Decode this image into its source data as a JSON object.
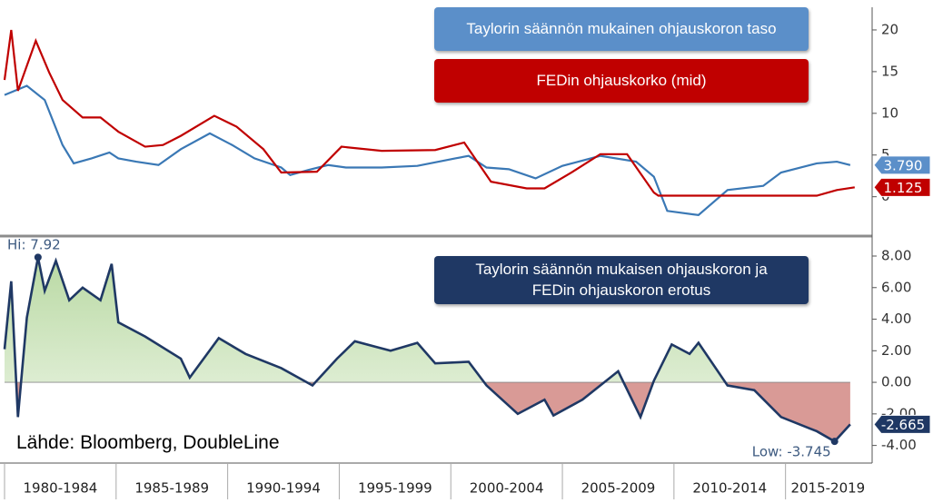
{
  "chart_data": [
    {
      "type": "line",
      "xlim": [
        1980,
        2018.8
      ],
      "ylim": [
        -4.5,
        22.5
      ],
      "yticks": [
        0,
        5,
        10,
        15,
        20
      ],
      "series": [
        {
          "name": "Taylorin säännön mukainen ohjauskoron taso",
          "color": "#3a78b5",
          "box_color": "#5b8fc9",
          "last_label": "3.790",
          "x": [
            1980.0,
            1981.0,
            1981.8,
            1982.6,
            1983.1,
            1983.9,
            1984.7,
            1985.1,
            1985.9,
            1986.9,
            1987.9,
            1989.2,
            1990.2,
            1991.2,
            1992.4,
            1992.8,
            1993.6,
            1994.5,
            1995.3,
            1996.9,
            1998.5,
            2000.2,
            2000.8,
            2001.6,
            2002.6,
            2003.8,
            2005.0,
            2006.7,
            2008.3,
            2009.1,
            2009.7,
            2011.1,
            2012.4,
            2014.0,
            2014.8,
            2016.4,
            2017.3,
            2017.9
          ],
          "values": [
            12.2,
            13.3,
            11.6,
            6.2,
            4.0,
            4.6,
            5.3,
            4.6,
            4.2,
            3.8,
            5.7,
            7.6,
            6.2,
            4.6,
            3.5,
            2.6,
            3.2,
            3.8,
            3.5,
            3.5,
            3.7,
            4.6,
            4.9,
            3.5,
            3.3,
            2.2,
            3.7,
            4.9,
            4.2,
            2.4,
            -1.7,
            -2.2,
            0.8,
            1.3,
            2.9,
            4.0,
            4.2,
            3.79
          ]
        },
        {
          "name": "FEDin ohjauskorko (mid)",
          "color": "#c00000",
          "box_color": "#c00000",
          "last_label": "1.125",
          "x": [
            1980.0,
            1980.3,
            1980.6,
            1981.4,
            1982.0,
            1982.6,
            1983.5,
            1984.3,
            1985.1,
            1986.3,
            1987.1,
            1987.9,
            1989.4,
            1990.4,
            1991.6,
            1992.4,
            1994.0,
            1995.1,
            1996.9,
            1999.3,
            2000.6,
            2001.8,
            2003.4,
            2004.2,
            2005.4,
            2006.7,
            2007.9,
            2009.1,
            2009.3,
            2016.4,
            2017.3,
            2018.1
          ],
          "values": [
            14,
            20,
            12.7,
            18.7,
            14.9,
            11.6,
            9.5,
            9.5,
            7.8,
            6.0,
            6.2,
            7.3,
            9.7,
            8.4,
            5.7,
            2.9,
            3.0,
            6.0,
            5.5,
            5.6,
            6.5,
            1.8,
            1.0,
            1.0,
            2.9,
            5.1,
            5.1,
            0.5,
            0.125,
            0.125,
            0.8,
            1.125
          ]
        }
      ]
    },
    {
      "type": "area",
      "xlim": [
        1980,
        2018.8
      ],
      "ylim": [
        -5,
        9.15
      ],
      "yticks": [
        {
          "value": -4,
          "label": "-4.00"
        },
        {
          "value": -2,
          "label": "-2.00"
        },
        {
          "value": 0,
          "label": "0.00"
        },
        {
          "value": 2,
          "label": "2.00"
        },
        {
          "value": 4,
          "label": "4.00"
        },
        {
          "value": 6,
          "label": "6.00"
        },
        {
          "value": 8,
          "label": "8.00"
        }
      ],
      "xticks": [
        1980,
        1985,
        1990,
        1995,
        2000,
        2005,
        2010,
        2015
      ],
      "categories": [
        "1980-1984",
        "1985-1989",
        "1990-1994",
        "1995-1999",
        "2000-2004",
        "2005-2009",
        "2010-2014",
        "2015-2019"
      ],
      "positive_color": "#b9d9a3",
      "negative_color": "#d99a96",
      "series": [
        {
          "name": "Taylorin säännön mukaisen ohjauskoron ja FEDin ohjauskoron erotus",
          "color": "#1f3864",
          "box_color": "#1f3864",
          "last_label": "-2.665",
          "x": [
            1980.0,
            1980.3,
            1980.6,
            1981.0,
            1981.5,
            1981.8,
            1982.3,
            1982.9,
            1983.5,
            1984.3,
            1984.8,
            1985.1,
            1986.3,
            1987.9,
            1988.3,
            1989.6,
            1990.8,
            1992.4,
            1993.8,
            1994.9,
            1995.7,
            1997.3,
            1998.5,
            1999.3,
            2000.8,
            2001.6,
            2003.0,
            2004.2,
            2004.6,
            2005.9,
            2007.5,
            2008.5,
            2009.1,
            2009.9,
            2010.7,
            2011.1,
            2012.4,
            2013.6,
            2014.8,
            2016.4,
            2017.2,
            2017.9
          ],
          "values": [
            2.1,
            6.4,
            -2.2,
            4.1,
            7.92,
            5.8,
            7.7,
            5.2,
            6.0,
            5.2,
            7.5,
            3.8,
            2.9,
            1.5,
            0.3,
            2.8,
            1.8,
            0.9,
            -0.2,
            1.5,
            2.6,
            2.0,
            2.5,
            1.2,
            1.3,
            -0.2,
            -2.0,
            -1.1,
            -2.1,
            -1.1,
            0.7,
            -2.2,
            0.1,
            2.4,
            1.8,
            2.5,
            -0.2,
            -0.5,
            -2.2,
            -3.1,
            -3.745,
            -2.665
          ]
        }
      ],
      "annotations": [
        {
          "text": "Hi: 7.92",
          "x": 1981.5,
          "y": 7.92
        },
        {
          "text": "Low: -3.745",
          "x": 2017.2,
          "y": -3.745
        }
      ]
    }
  ],
  "source": "Lähde: Bloomberg, DoubleLine"
}
